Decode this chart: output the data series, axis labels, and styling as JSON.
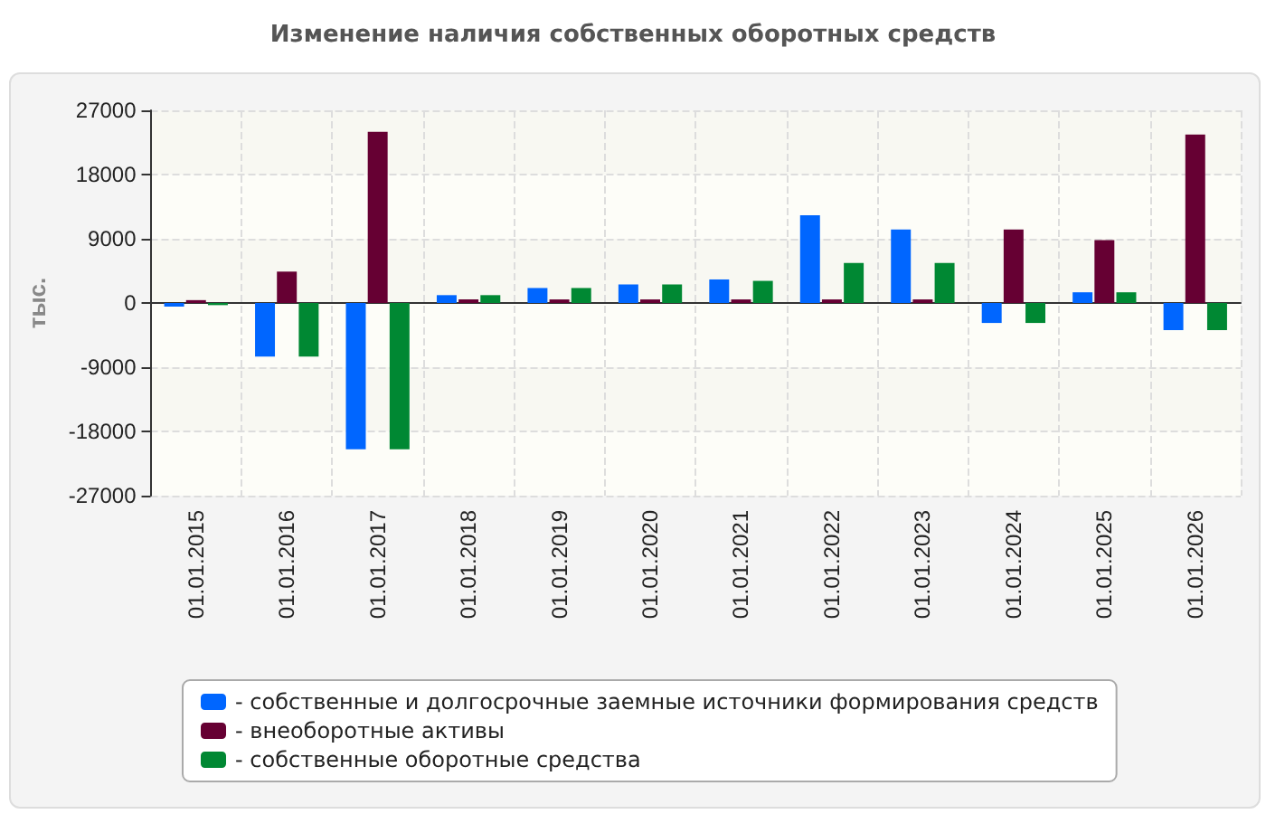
{
  "chart_data": {
    "type": "bar",
    "title": "Изменение наличия собственных оборотных средств",
    "ylabel": "тыс.",
    "categories": [
      "01.01.2015",
      "01.01.2016",
      "01.01.2017",
      "01.01.2018",
      "01.01.2019",
      "01.01.2020",
      "01.01.2021",
      "01.01.2022",
      "01.01.2023",
      "01.01.2024",
      "01.01.2025",
      "01.01.2026"
    ],
    "series": [
      {
        "name": "- собственные и долгосрочные заемные источники формирования средств",
        "color": "#0066ff",
        "values": [
          -500,
          -7500,
          -20500,
          1100,
          2100,
          2600,
          3300,
          12300,
          10300,
          -2800,
          1500,
          -3800
        ]
      },
      {
        "name": "- внеоборотные активы",
        "color": "#660033",
        "values": [
          400,
          4400,
          24000,
          500,
          500,
          500,
          500,
          500,
          500,
          10300,
          8800,
          23600
        ]
      },
      {
        "name": "- собственные оборотные средства",
        "color": "#008833",
        "values": [
          -300,
          -7500,
          -20500,
          1100,
          2100,
          2600,
          3100,
          5600,
          5600,
          -2800,
          1500,
          -3800
        ]
      }
    ],
    "ylim": [
      -27000,
      27000
    ],
    "yticks": [
      -27000,
      -18000,
      -9000,
      0,
      9000,
      18000,
      27000
    ],
    "grid": true,
    "legend": "bottom"
  }
}
